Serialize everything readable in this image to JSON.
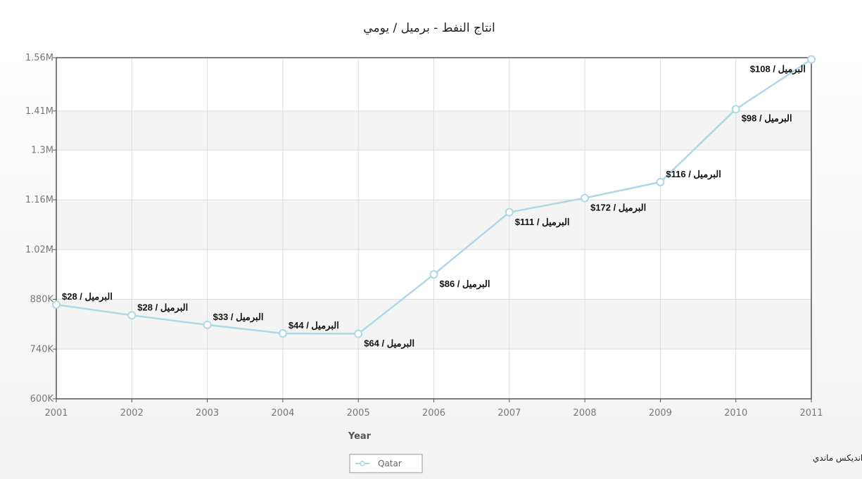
{
  "chart_data": {
    "type": "line",
    "title": "انتاج النفط - برميل / يومي",
    "xlabel": "Year",
    "ylabel": "",
    "x": [
      "2001",
      "2002",
      "2003",
      "2004",
      "2005",
      "2006",
      "2007",
      "2008",
      "2009",
      "2010",
      "2011"
    ],
    "ylim": [
      600000,
      1560000
    ],
    "y_ticks": [
      600000,
      740000,
      880000,
      1020000,
      1160000,
      1300000,
      1410000,
      1560000
    ],
    "y_tick_labels": [
      "600K",
      "740K",
      "880K",
      "1.02M",
      "1.16M",
      "1.3M",
      "1.41M",
      "1.56M"
    ],
    "series": [
      {
        "name": "Qatar",
        "color": "#add8e6",
        "values": [
          865000,
          835000,
          808000,
          784000,
          783000,
          950000,
          1125000,
          1165000,
          1210000,
          1415000,
          1555000
        ],
        "labels": [
          "$28 / البرميل",
          "$28 / البرميل",
          "$33 / البرميل",
          "$44 / البرميل",
          "$64 / البرميل",
          "$86 / البرميل",
          "$111 / البرميل",
          "$172 / البرميل",
          "$116 / البرميل",
          "$98 / البرميل",
          "$108 / البرميل"
        ]
      }
    ],
    "grid": true,
    "legend": "bottom-center",
    "source_note": "منقول عن انديكس ماندي"
  }
}
